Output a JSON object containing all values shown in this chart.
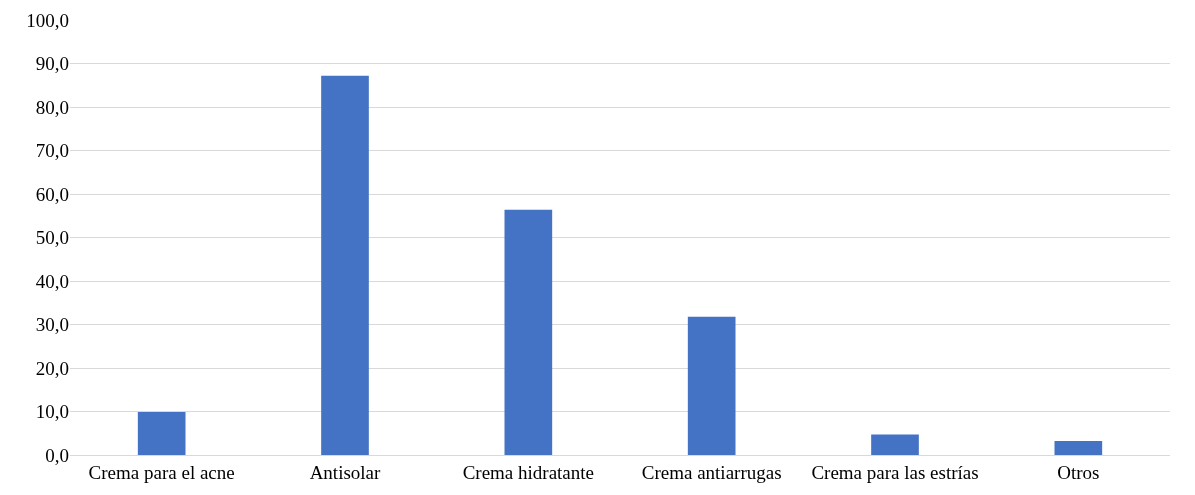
{
  "chart_data": {
    "type": "bar",
    "categories": [
      "Crema para el acne",
      "Antisolar",
      "Crema hidratante",
      "Crema antiarrugas",
      "Crema para las estrías",
      "Otros"
    ],
    "values": [
      9.9,
      87.2,
      56.4,
      31.8,
      4.7,
      3.2
    ],
    "color": "#4472c4",
    "ylim": [
      0,
      100
    ],
    "yticks": [
      {
        "value": 0,
        "label": "0,0"
      },
      {
        "value": 10,
        "label": "10,0"
      },
      {
        "value": 20,
        "label": "20,0"
      },
      {
        "value": 30,
        "label": "30,0"
      },
      {
        "value": 40,
        "label": "40,0"
      },
      {
        "value": 50,
        "label": "50,0"
      },
      {
        "value": 60,
        "label": "60,0"
      },
      {
        "value": 70,
        "label": "70,0"
      },
      {
        "value": 80,
        "label": "80,0"
      },
      {
        "value": 90,
        "label": "90,0"
      },
      {
        "value": 100,
        "label": "100,0"
      }
    ],
    "grid": "y"
  }
}
